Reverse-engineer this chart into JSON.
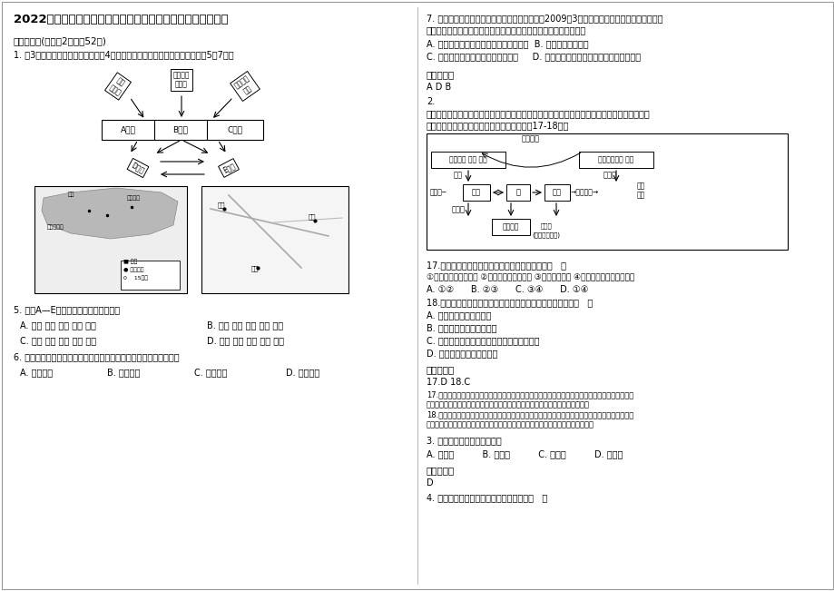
{
  "title": "2022年江苏省盐城市马沟中学高二地理上学期期末试卷含解析",
  "section1": "一、选择题(每小题2分，共52分)",
  "q1_intro": "1. 图3为鲁尔区工业部门关联图，图4为鲁尔区和沪宁杭工业基地。读材料回答5～7题。",
  "q5": "5. 图中A—E字母代表的工业部门分别是",
  "q5_A": "A. 钢铁 煤炭 化学 机械 电力",
  "q5_B": "B. 钢铁 电力 煤炭 机械 化学",
  "q5_C": "C. 钢铁 化学 煤炭 机械 电力",
  "q5_D": "D. 钢铁 煤炭 电力 机械 化学",
  "q6": "6. 我国沪宁杭工业基地与鲁尔区发展的区位条件相比，最大的优势是",
  "q6_A": "A. 铁矿丰富",
  "q6_B": "B. 水源充足",
  "q6_C": "C. 市场广阔",
  "q6_D": "D. 海运便利",
  "q7_line1": "7. 山东枣庄是一座因煤而建、因煤而兴的城市。2009年3月经国务院批准该市被列入国家第二",
  "q7_line2": "批资源枯竭城市转型试点市。在经济转型的过程中，资源枯竭型城市",
  "q7_AB": "A. 工业产值一定会随着资源的枯竭而下降  B. 第三产业比重上升",
  "q7_CD": "C. 人口大量迁往其他城市或郊区就业     D. 禁止开采煤炭，主要发展技术密集型产业",
  "ref1_label": "参考答案：",
  "ref1_ans": "A D B",
  "q2_line1": "2.",
  "q2_line2": "山西是我国煤炭输出最多的省区，随着煤炭深加工的发展，生产结构也发生了很大变化，下图是",
  "q2_line3": "西某地煤炭资源开发和综合利用示意图。完成17-18题。",
  "q17": "17.该地生产结构的变化，其社会经济效益表现在（   ）",
  "q17_opts": "①减轻交通运输的压力 ②提高煤炭生产的产量 ③促进产业转移 ④延长产业链、增加附加值",
  "q17_ABCD": "A. ①②      B. ②③      C. ③④      D. ①④",
  "q18": "18.该地生产结构变化对当地生态环境的影响，说法正确的是（   ）",
  "q18_A": "A. 实现了废弃物的零排放",
  "q18_B": "B. 减缓当地气候变暖的趋势",
  "q18_C": "C. 生产规模扩大，势必加剧当地水资源的短缺",
  "q18_D": "D. 减轻了对土地资源的压力",
  "ref2_label": "参考答案：",
  "ref2_ans": "17.D 18.C",
  "ref2_exp1a": "17.煤炭的深加工，增加了附加值，煤炭的气化，减轻了交通运输的压力，气化和二氧化碳等气体的部",
  "ref2_exp1b": "分回收，提高了煤炭的利用率，图中涉及的是产业结构的调整，并没有发生转移。",
  "ref2_exp2a": "18.生产结构的变化，改变了生产方式，只是减少了废弃物的排放；由于减少了煤炭的外运量，排放的",
  "ref2_exp2b": "二氧化碳气体排增多，加剧了当地大气、水的污染，从而加剧了当地水资源的短缺。",
  "q3": "3. 四大洋中，跨经度最多的是",
  "q3_ABCD": "A. 太平洋          B. 大西洋          C. 印度洋          D. 北冰洋",
  "ref3_label": "参考答案：",
  "ref3_ans": "D",
  "q4": "4. 关于经度、纬度变化的叙述，正确的是（   ）",
  "bg_color": "#ffffff",
  "text_color": "#000000",
  "divider_color": "#cccccc"
}
